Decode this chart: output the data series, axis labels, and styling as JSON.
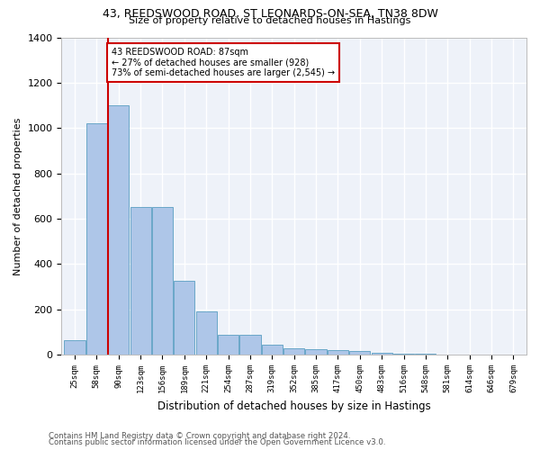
{
  "title1": "43, REEDSWOOD ROAD, ST LEONARDS-ON-SEA, TN38 8DW",
  "title2": "Size of property relative to detached houses in Hastings",
  "xlabel": "Distribution of detached houses by size in Hastings",
  "ylabel": "Number of detached properties",
  "annotation_line1": "43 REEDSWOOD ROAD: 87sqm",
  "annotation_line2": "← 27% of detached houses are smaller (928)",
  "annotation_line3": "73% of semi-detached houses are larger (2,545) →",
  "bar_color": "#aec6e8",
  "bar_edge_color": "#5a9fc2",
  "vline_color": "#cc0000",
  "annotation_box_edge_color": "#cc0000",
  "background_color": "#eef2f9",
  "footer_line1": "Contains HM Land Registry data © Crown copyright and database right 2024.",
  "footer_line2": "Contains public sector information licensed under the Open Government Licence v3.0.",
  "bin_labels": [
    "25sqm",
    "58sqm",
    "90sqm",
    "123sqm",
    "156sqm",
    "189sqm",
    "221sqm",
    "254sqm",
    "287sqm",
    "319sqm",
    "352sqm",
    "385sqm",
    "417sqm",
    "450sqm",
    "483sqm",
    "516sqm",
    "548sqm",
    "581sqm",
    "614sqm",
    "646sqm",
    "679sqm"
  ],
  "bar_heights": [
    65,
    1020,
    1100,
    650,
    650,
    325,
    190,
    90,
    90,
    45,
    30,
    25,
    20,
    15,
    10,
    5,
    3,
    2,
    1,
    1,
    0
  ],
  "vline_bin_index": 2,
  "ylim": [
    0,
    1400
  ],
  "yticks": [
    0,
    200,
    400,
    600,
    800,
    1000,
    1200,
    1400
  ]
}
